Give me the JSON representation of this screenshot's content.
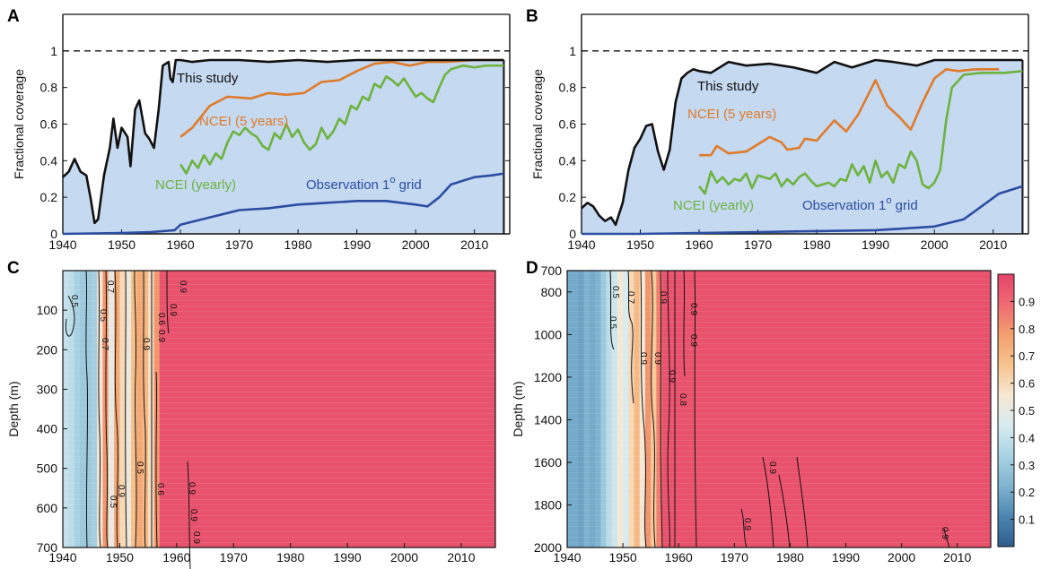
{
  "chart_data": [
    {
      "panel": "A",
      "type": "line",
      "xlim": [
        1940,
        2016
      ],
      "ylim": [
        0,
        1.2
      ],
      "ylabel": "Fractional coverage",
      "xticks": [
        "1940",
        "1950",
        "1960",
        "1970",
        "1980",
        "1990",
        "2000",
        "2010"
      ],
      "yticks": [
        "0",
        "0.2",
        "0.4",
        "0.6",
        "0.8",
        "1"
      ],
      "reference_line": 1,
      "shaded_area_color": "#c5d9f0",
      "series": [
        {
          "name": "This study",
          "color": "#111111",
          "label": "This study",
          "x": [
            1940,
            1941,
            1942,
            1943,
            1944,
            1944.7,
            1945.4,
            1946,
            1947,
            1948,
            1948.6,
            1949.3,
            1950,
            1951,
            1951.5,
            1952.3,
            1953,
            1954,
            1954.7,
            1955.5,
            1956.3,
            1957,
            1958,
            1958.3,
            1958.7,
            1959.2,
            1960,
            1962,
            1965,
            1970,
            1975,
            1980,
            1985,
            1990,
            1995,
            2000,
            2005,
            2010,
            2015
          ],
          "y": [
            0.31,
            0.34,
            0.41,
            0.34,
            0.32,
            0.2,
            0.06,
            0.08,
            0.32,
            0.47,
            0.63,
            0.47,
            0.58,
            0.53,
            0.37,
            0.68,
            0.73,
            0.55,
            0.52,
            0.47,
            0.68,
            0.92,
            0.94,
            0.85,
            0.83,
            0.95,
            0.95,
            0.94,
            0.95,
            0.95,
            0.94,
            0.95,
            0.94,
            0.95,
            0.95,
            0.95,
            0.95,
            0.95,
            0.95
          ]
        },
        {
          "name": "NCEI (5 years)",
          "color": "#e07b2a",
          "label": "NCEI (5 years)",
          "x": [
            1960,
            1962,
            1965,
            1968,
            1972,
            1975,
            1978,
            1981,
            1984,
            1987,
            1990,
            1993,
            1996,
            1999,
            2002,
            2005,
            2010,
            2015
          ],
          "y": [
            0.53,
            0.58,
            0.7,
            0.75,
            0.74,
            0.77,
            0.76,
            0.77,
            0.83,
            0.84,
            0.89,
            0.93,
            0.94,
            0.92,
            0.94,
            0.94,
            0.95,
            0.95
          ]
        },
        {
          "name": "NCEI (yearly)",
          "color": "#6db33f",
          "label": "NCEI (yearly)",
          "x": [
            1960,
            1961,
            1962,
            1963,
            1964,
            1965,
            1966,
            1967,
            1968,
            1969,
            1970,
            1971,
            1972,
            1973,
            1974,
            1975,
            1976,
            1977,
            1978,
            1979,
            1980,
            1981,
            1982,
            1983,
            1984,
            1985,
            1986,
            1987,
            1988,
            1989,
            1990,
            1991,
            1992,
            1993,
            1994,
            1995,
            1996,
            1997,
            1998,
            1999,
            2000,
            2001,
            2002,
            2003,
            2004,
            2005,
            2006,
            2008,
            2010,
            2012,
            2015
          ],
          "y": [
            0.38,
            0.33,
            0.4,
            0.36,
            0.43,
            0.38,
            0.44,
            0.41,
            0.5,
            0.56,
            0.54,
            0.58,
            0.55,
            0.53,
            0.48,
            0.46,
            0.55,
            0.52,
            0.6,
            0.53,
            0.57,
            0.5,
            0.46,
            0.49,
            0.58,
            0.52,
            0.56,
            0.63,
            0.6,
            0.7,
            0.68,
            0.75,
            0.73,
            0.82,
            0.8,
            0.86,
            0.84,
            0.81,
            0.85,
            0.8,
            0.75,
            0.77,
            0.74,
            0.72,
            0.8,
            0.87,
            0.9,
            0.92,
            0.91,
            0.92,
            0.92
          ]
        },
        {
          "name": "Observation 1o grid",
          "color": "#2b4ea2",
          "label_main": "Observation 1",
          "label_sup": "o",
          "label_tail": " grid",
          "x": [
            1940,
            1950,
            1955,
            1959,
            1960,
            1965,
            1970,
            1975,
            1980,
            1985,
            1990,
            1995,
            2000,
            2002,
            2004,
            2006,
            2008,
            2010,
            2013,
            2015
          ],
          "y": [
            0.0,
            0.005,
            0.01,
            0.02,
            0.05,
            0.09,
            0.13,
            0.14,
            0.16,
            0.17,
            0.18,
            0.18,
            0.16,
            0.15,
            0.2,
            0.27,
            0.29,
            0.31,
            0.32,
            0.33
          ]
        }
      ]
    },
    {
      "panel": "B",
      "type": "line",
      "xlim": [
        1940,
        2016
      ],
      "ylim": [
        0,
        1.2
      ],
      "ylabel": "Fractional coverage",
      "xticks": [
        "1940",
        "1950",
        "1960",
        "1970",
        "1980",
        "1990",
        "2000",
        "2010"
      ],
      "yticks": [
        "0",
        "0.2",
        "0.4",
        "0.6",
        "0.8",
        "1"
      ],
      "reference_line": 1,
      "shaded_area_color": "#c5d9f0",
      "series": [
        {
          "name": "This study",
          "color": "#111111",
          "label": "This study",
          "x": [
            1940,
            1941,
            1942,
            1943,
            1944,
            1945,
            1945.8,
            1946.5,
            1947,
            1948,
            1949,
            1950,
            1951,
            1952,
            1953,
            1954,
            1955,
            1956,
            1957,
            1958,
            1959,
            1960,
            1962,
            1965,
            1968,
            1972,
            1976,
            1980,
            1983,
            1986,
            1990,
            1993,
            1997,
            2000,
            2005,
            2010,
            2015
          ],
          "y": [
            0.14,
            0.17,
            0.15,
            0.1,
            0.07,
            0.09,
            0.05,
            0.12,
            0.17,
            0.35,
            0.47,
            0.52,
            0.59,
            0.6,
            0.45,
            0.35,
            0.46,
            0.72,
            0.85,
            0.88,
            0.9,
            0.89,
            0.88,
            0.94,
            0.92,
            0.93,
            0.91,
            0.88,
            0.94,
            0.91,
            0.95,
            0.94,
            0.92,
            0.95,
            0.95,
            0.95,
            0.95
          ]
        },
        {
          "name": "NCEI (5 years)",
          "color": "#e07b2a",
          "label": "NCEI (5 years)",
          "x": [
            1960,
            1962,
            1963,
            1965,
            1968,
            1970,
            1972,
            1974,
            1975,
            1977,
            1978,
            1980,
            1983,
            1985,
            1987,
            1990,
            1992,
            1994,
            1996,
            1998,
            2000,
            2002,
            2004,
            2007,
            2011
          ],
          "y": [
            0.43,
            0.43,
            0.48,
            0.44,
            0.45,
            0.49,
            0.53,
            0.5,
            0.46,
            0.47,
            0.52,
            0.51,
            0.62,
            0.56,
            0.65,
            0.84,
            0.7,
            0.64,
            0.57,
            0.72,
            0.85,
            0.9,
            0.89,
            0.9,
            0.9
          ]
        },
        {
          "name": "NCEI (yearly)",
          "color": "#6db33f",
          "label": "NCEI (yearly)",
          "x": [
            1960,
            1961,
            1962,
            1963,
            1964,
            1965,
            1966,
            1967,
            1968,
            1969,
            1970,
            1971,
            1972,
            1973,
            1974,
            1975,
            1976,
            1977,
            1978,
            1979,
            1980,
            1981,
            1982,
            1983,
            1984,
            1985,
            1986,
            1987,
            1988,
            1989,
            1990,
            1991,
            1992,
            1993,
            1994,
            1995,
            1996,
            1997,
            1998,
            1999,
            2000,
            2001,
            2002,
            2003,
            2005,
            2008,
            2012,
            2015
          ],
          "y": [
            0.26,
            0.22,
            0.34,
            0.28,
            0.31,
            0.27,
            0.3,
            0.29,
            0.33,
            0.25,
            0.32,
            0.31,
            0.3,
            0.33,
            0.26,
            0.3,
            0.27,
            0.31,
            0.33,
            0.29,
            0.26,
            0.27,
            0.28,
            0.26,
            0.3,
            0.29,
            0.38,
            0.32,
            0.37,
            0.28,
            0.4,
            0.31,
            0.34,
            0.28,
            0.38,
            0.36,
            0.45,
            0.4,
            0.27,
            0.25,
            0.28,
            0.35,
            0.62,
            0.8,
            0.87,
            0.88,
            0.88,
            0.89
          ]
        },
        {
          "name": "Observation 1o grid",
          "color": "#2b4ea2",
          "label_main": "Observation 1",
          "label_sup": "o",
          "label_tail": " grid",
          "x": [
            1940,
            1950,
            1960,
            1970,
            1980,
            1990,
            1995,
            2000,
            2005,
            2008,
            2011,
            2013,
            2015
          ],
          "y": [
            0.0,
            0.0,
            0.005,
            0.01,
            0.015,
            0.02,
            0.03,
            0.04,
            0.08,
            0.15,
            0.22,
            0.24,
            0.26
          ]
        }
      ]
    },
    {
      "panel": "C",
      "type": "heatmap",
      "xlim": [
        1940,
        2016
      ],
      "ylim": [
        0,
        700
      ],
      "ylabel": "Depth (m)",
      "xticks": [
        "1940",
        "1950",
        "1960",
        "1970",
        "1980",
        "1990",
        "2000",
        "2010"
      ],
      "yticks": [
        "100",
        "200",
        "300",
        "400",
        "500",
        "600",
        "700"
      ],
      "column_years": [
        1940,
        1941,
        1942,
        1943,
        1944,
        1945,
        1946,
        1947,
        1948,
        1949,
        1950,
        1951,
        1952,
        1953,
        1954,
        1955,
        1956,
        1957,
        1958
      ],
      "column_values": [
        0.4,
        0.38,
        0.33,
        0.3,
        0.3,
        0.32,
        0.55,
        0.8,
        0.5,
        0.75,
        0.6,
        0.52,
        0.68,
        0.75,
        0.7,
        0.58,
        0.8,
        0.96,
        0.96
      ],
      "background_value": 0.96,
      "contour_labels": [
        "0.5",
        "0.7",
        "0.9",
        "0.5",
        "0.7",
        "0.6",
        "0.9",
        "0.5",
        "0.9",
        "0.9",
        "0.9",
        "0.5",
        "0.6",
        "0.9",
        "0.9",
        "0.9"
      ]
    },
    {
      "panel": "D",
      "type": "heatmap",
      "xlim": [
        1940,
        2016
      ],
      "ylim": [
        700,
        2000
      ],
      "ylabel": "Depth (m)",
      "xticks": [
        "1940",
        "1950",
        "1960",
        "1970",
        "1980",
        "1990",
        "2000",
        "2010"
      ],
      "yticks": [
        "700",
        "800",
        "1000",
        "1200",
        "1400",
        "1600",
        "1800",
        "2000"
      ],
      "column_years": [
        1940,
        1941,
        1942,
        1943,
        1944,
        1945,
        1946,
        1947,
        1948,
        1949,
        1950,
        1951,
        1952,
        1953,
        1954,
        1955,
        1956,
        1957
      ],
      "column_values": [
        0.2,
        0.2,
        0.18,
        0.22,
        0.2,
        0.22,
        0.3,
        0.38,
        0.42,
        0.55,
        0.45,
        0.6,
        0.7,
        0.55,
        0.8,
        0.65,
        0.85,
        0.96
      ],
      "background_value": 0.96,
      "contour_labels": [
        "0.5",
        "0.7",
        "0.5",
        "0.9",
        "0.9",
        "0.9",
        "0.8",
        "0.9",
        "0.9",
        "0.9",
        "0.9",
        "0.9",
        "0.9"
      ],
      "colorbar": {
        "ticks": [
          "0.1",
          "0.2",
          "0.3",
          "0.4",
          "0.5",
          "0.6",
          "0.7",
          "0.8",
          "0.9"
        ],
        "stops": [
          "#2e5d8c",
          "#4c86b0",
          "#7fb3d0",
          "#a9d3e3",
          "#d7ebf0",
          "#f6e7d3",
          "#f7c48e",
          "#f39f6e",
          "#ef6b73",
          "#e5446a"
        ]
      }
    }
  ],
  "panel_letters": {
    "a": "A",
    "b": "B",
    "c": "C",
    "d": "D"
  }
}
